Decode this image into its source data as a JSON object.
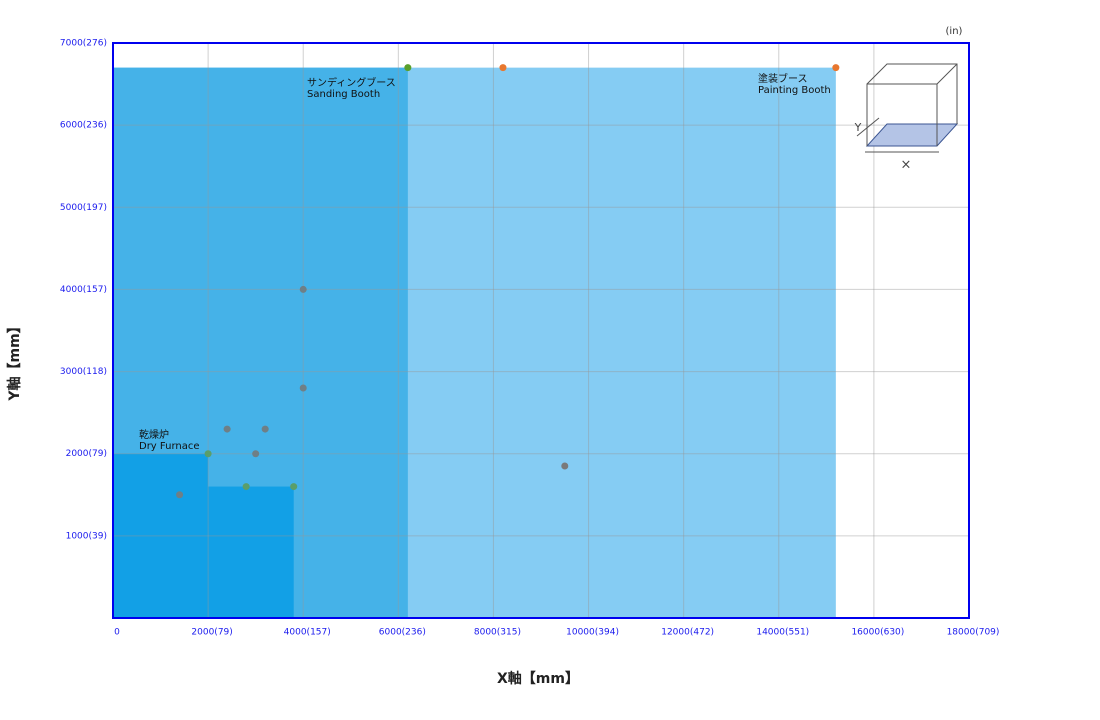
{
  "chart_data": {
    "type": "region-scatter",
    "x_label": "X軸【mm】",
    "y_label": "Y軸【mm】",
    "unit_note": "(in)",
    "xlim": [
      0,
      18000
    ],
    "ylim": [
      0,
      7000
    ],
    "grid": true,
    "xticks": [
      {
        "value": 0,
        "label": "0"
      },
      {
        "value": 2000,
        "label": "2000(79)"
      },
      {
        "value": 4000,
        "label": "4000(157)"
      },
      {
        "value": 6000,
        "label": "6000(236)"
      },
      {
        "value": 8000,
        "label": "8000(315)"
      },
      {
        "value": 10000,
        "label": "10000(394)"
      },
      {
        "value": 12000,
        "label": "12000(472)"
      },
      {
        "value": 14000,
        "label": "14000(551)"
      },
      {
        "value": 16000,
        "label": "16000(630)"
      },
      {
        "value": 18000,
        "label": "18000(709)"
      }
    ],
    "yticks": [
      {
        "value": 1000,
        "label": "1000(39)"
      },
      {
        "value": 2000,
        "label": "2000(79)"
      },
      {
        "value": 3000,
        "label": "3000(118)"
      },
      {
        "value": 4000,
        "label": "4000(157)"
      },
      {
        "value": 5000,
        "label": "5000(197)"
      },
      {
        "value": 6000,
        "label": "6000(236)"
      },
      {
        "value": 7000,
        "label": "7000(276)"
      }
    ],
    "regions": [
      {
        "label_ja": "塗装ブース",
        "label_en": "Painting Booth",
        "color": "#85ccf3",
        "rects": [
          {
            "x": [
              0,
              15200
            ],
            "y": [
              0,
              6700
            ]
          }
        ]
      },
      {
        "label_ja": "サンディングブース",
        "label_en": "Sanding Booth",
        "color": "#45b2e8",
        "rects": [
          {
            "x": [
              0,
              6200
            ],
            "y": [
              0,
              6700
            ]
          }
        ]
      },
      {
        "label_ja": "乾燥炉",
        "label_en": "Dry Furnace",
        "color": "#12a0e6",
        "rects": [
          {
            "x": [
              0,
              2000
            ],
            "y": [
              0,
              2000
            ]
          },
          {
            "x": [
              2000,
              3800
            ],
            "y": [
              0,
              1600
            ]
          }
        ]
      }
    ],
    "points": {
      "x": [
        4000,
        4000,
        2400,
        3200,
        2000,
        3000,
        1400,
        2800,
        3800,
        9500,
        6200,
        8200,
        15200
      ],
      "y": [
        4000,
        2800,
        2300,
        2300,
        2000,
        2000,
        1500,
        1600,
        1600,
        1850,
        6700,
        6700,
        6700
      ],
      "colors": [
        "#6f7f86",
        "#6f7f86",
        "#6f7f86",
        "#6f7f86",
        "#5a9e6a",
        "#6f7f86",
        "#6f7f86",
        "#5a9e6a",
        "#5a9e6a",
        "#7a7a7a",
        "#5aa02c",
        "#e8772e",
        "#e8772e"
      ]
    },
    "icon": {
      "y_letter": "Y",
      "x_letter": "×"
    }
  }
}
